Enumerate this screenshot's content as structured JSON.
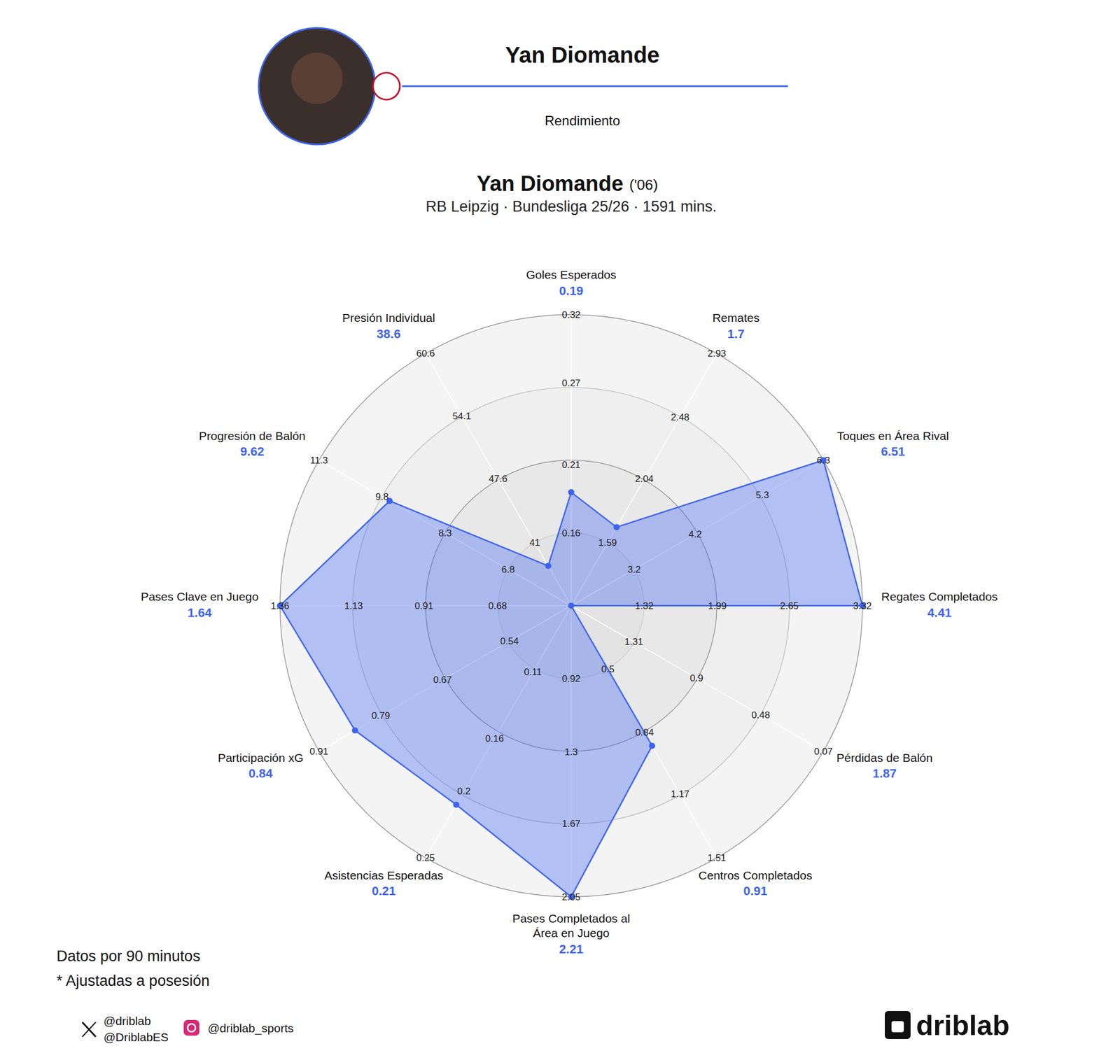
{
  "header": {
    "title": "Yan Diomande",
    "subtitle": "Rendimiento"
  },
  "chart_data": {
    "type": "radar",
    "title": "Yan Diomande",
    "title_suffix": "('06)",
    "subtitle": "RB Leipzig · Bundesliga 25/26 · 1591 mins.",
    "color": "#3d63f0",
    "grid": true,
    "axes": [
      {
        "name": "Goles Esperados",
        "value": 0.19,
        "range": [
          0.107,
          0.32
        ],
        "ticks": [
          0.16,
          0.21,
          0.27,
          0.32
        ]
      },
      {
        "name": "Remates",
        "value": 1.7,
        "range": [
          1.143,
          2.93
        ],
        "ticks": [
          1.59,
          2.04,
          2.48,
          2.93
        ]
      },
      {
        "name": "Toques en Área Rival",
        "value": 6.51,
        "range": [
          2.17,
          6.3
        ],
        "ticks": [
          3.2,
          4.2,
          5.3,
          6.3
        ]
      },
      {
        "name": "Regates Completados",
        "value": 4.41,
        "range": [
          0.65,
          3.32
        ],
        "ticks": [
          1.32,
          1.99,
          2.65,
          3.32
        ]
      },
      {
        "name": "Pérdidas de Balón",
        "value": 1.87,
        "range": [
          1.72,
          0.07
        ],
        "ticks": [
          1.31,
          0.9,
          0.48,
          0.07
        ]
      },
      {
        "name": "Centros Completados",
        "value": 0.91,
        "range": [
          0.16,
          1.51
        ],
        "ticks": [
          0.5,
          0.84,
          1.17,
          1.51
        ]
      },
      {
        "name": "Pases Completados al Área en Juego",
        "value": 2.21,
        "range": [
          0.54,
          2.05
        ],
        "ticks": [
          0.92,
          1.3,
          1.67,
          2.05
        ]
      },
      {
        "name": "Asistencias Esperadas",
        "value": 0.21,
        "range": [
          0.06,
          0.25
        ],
        "ticks": [
          0.11,
          0.16,
          0.2,
          0.25
        ]
      },
      {
        "name": "Participación xG",
        "value": 0.84,
        "range": [
          0.42,
          0.91
        ],
        "ticks": [
          0.54,
          0.67,
          0.79,
          0.91
        ]
      },
      {
        "name": "Pases Clave en Juego",
        "value": 1.64,
        "range": [
          0.45,
          1.36
        ],
        "ticks": [
          0.68,
          0.91,
          1.13,
          1.36
        ]
      },
      {
        "name": "Progresión de Balón",
        "value": 9.62,
        "range": [
          5.3,
          11.3
        ],
        "ticks": [
          6.8,
          8.3,
          9.8,
          11.3
        ]
      },
      {
        "name": "Presión Individual",
        "value": 38.6,
        "range": [
          34.47,
          60.6
        ],
        "ticks": [
          41,
          47.6,
          54.1,
          60.6
        ]
      }
    ],
    "annotations": [
      "Datos por 90 minutos",
      "* Ajustadas a posesión"
    ]
  },
  "footer": {
    "social": [
      "@driblab",
      "@DriblabES",
      "@driblab_sports"
    ],
    "logo": "driblab"
  }
}
